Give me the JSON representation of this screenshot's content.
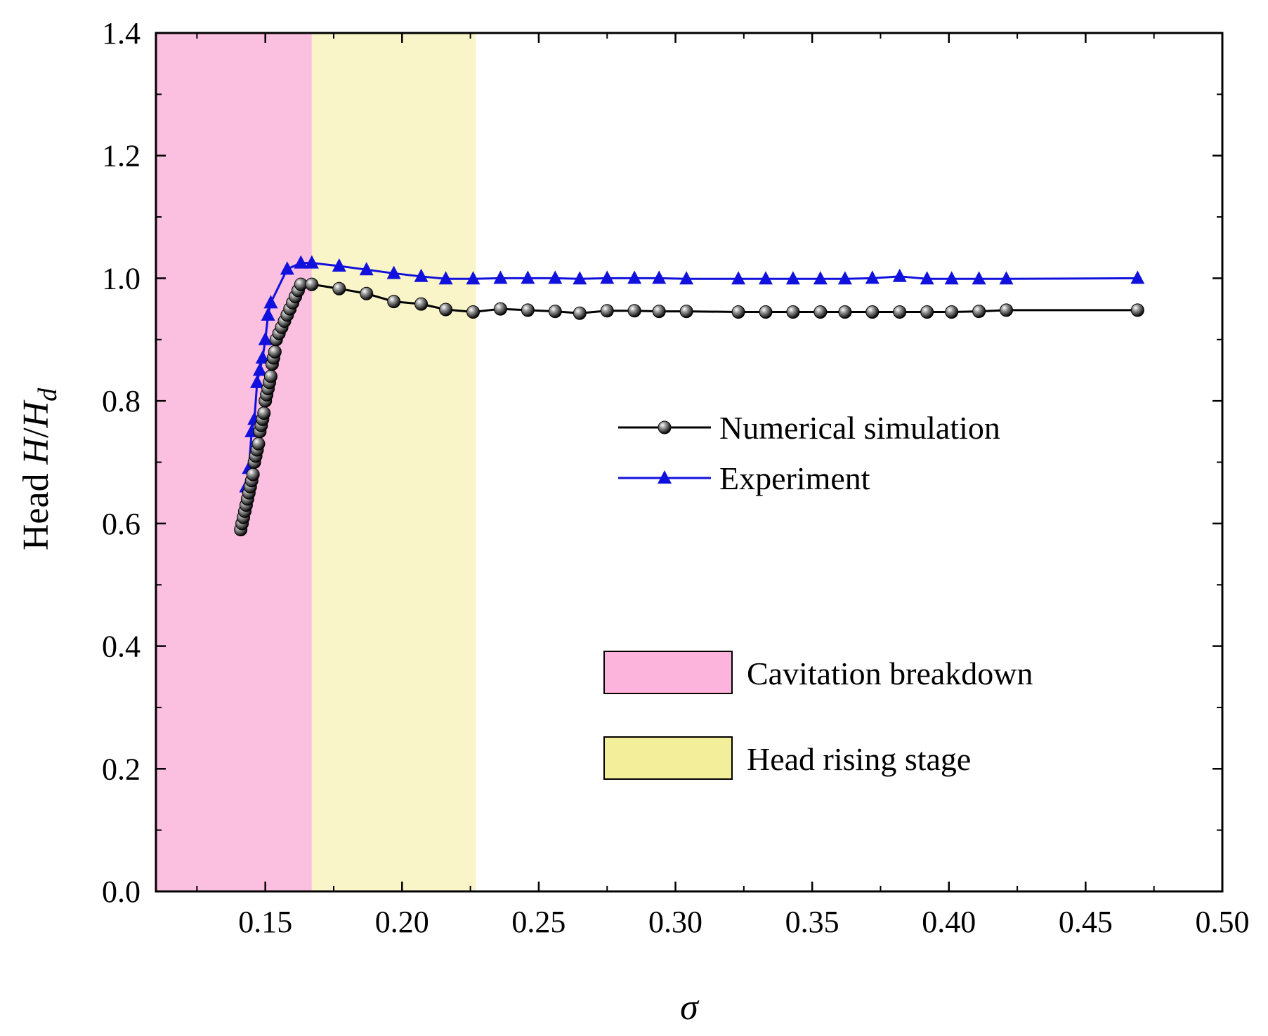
{
  "chart_data": {
    "type": "line",
    "title": "",
    "xlabel": "σ",
    "ylabel": {
      "prefix": "Head ",
      "var": "H",
      "slash": "/",
      "sub_var": "H",
      "sub": "d"
    },
    "xlim": [
      0.11,
      0.5
    ],
    "ylim": [
      0.0,
      1.4
    ],
    "xticks": [
      0.15,
      0.2,
      0.25,
      0.3,
      0.35,
      0.4,
      0.45,
      0.5
    ],
    "xtick_labels": [
      "0.15",
      "0.20",
      "0.25",
      "0.30",
      "0.35",
      "0.40",
      "0.45",
      "0.50"
    ],
    "yticks": [
      0.0,
      0.2,
      0.4,
      0.6,
      0.8,
      1.0,
      1.2,
      1.4
    ],
    "ytick_labels": [
      "0.0",
      "0.2",
      "0.4",
      "0.6",
      "0.8",
      "1.0",
      "1.2",
      "1.4"
    ],
    "grid": false,
    "regions": [
      {
        "name": "Cavitation breakdown",
        "x0": 0.11,
        "x1": 0.167,
        "color": "#fbbfe0",
        "legend_color": "#fcb3dc"
      },
      {
        "name": "Head rising stage",
        "x0": 0.167,
        "x1": 0.227,
        "color": "#faf5c8",
        "legend_color": "#f3ee9a"
      }
    ],
    "series": [
      {
        "name": "Numerical simulation",
        "color": "#000000",
        "marker": "sphere",
        "x": [
          0.141,
          0.1415,
          0.142,
          0.1425,
          0.143,
          0.1435,
          0.144,
          0.1445,
          0.145,
          0.1455,
          0.146,
          0.1465,
          0.147,
          0.1475,
          0.148,
          0.1485,
          0.149,
          0.1495,
          0.15,
          0.1505,
          0.151,
          0.1515,
          0.152,
          0.1525,
          0.153,
          0.1535,
          0.154,
          0.155,
          0.156,
          0.157,
          0.158,
          0.159,
          0.16,
          0.161,
          0.162,
          0.163,
          0.167,
          0.177,
          0.187,
          0.197,
          0.207,
          0.216,
          0.226,
          0.236,
          0.246,
          0.256,
          0.265,
          0.275,
          0.285,
          0.294,
          0.304,
          0.323,
          0.333,
          0.343,
          0.353,
          0.362,
          0.372,
          0.382,
          0.392,
          0.401,
          0.411,
          0.421,
          0.469
        ],
        "values": [
          0.59,
          0.6,
          0.61,
          0.62,
          0.63,
          0.64,
          0.65,
          0.66,
          0.67,
          0.68,
          0.7,
          0.71,
          0.72,
          0.73,
          0.75,
          0.76,
          0.77,
          0.78,
          0.8,
          0.81,
          0.82,
          0.83,
          0.84,
          0.86,
          0.87,
          0.88,
          0.9,
          0.91,
          0.92,
          0.93,
          0.94,
          0.95,
          0.96,
          0.97,
          0.98,
          0.99,
          0.99,
          0.983,
          0.975,
          0.962,
          0.958,
          0.949,
          0.945,
          0.95,
          0.948,
          0.946,
          0.943,
          0.947,
          0.947,
          0.946,
          0.946,
          0.945,
          0.945,
          0.945,
          0.945,
          0.945,
          0.945,
          0.945,
          0.945,
          0.945,
          0.946,
          0.948,
          0.948
        ]
      },
      {
        "name": "Experiment",
        "color": "#1111dd",
        "marker": "triangle",
        "x": [
          0.143,
          0.144,
          0.145,
          0.146,
          0.147,
          0.148,
          0.149,
          0.15,
          0.151,
          0.152,
          0.158,
          0.163,
          0.167,
          0.177,
          0.187,
          0.197,
          0.207,
          0.216,
          0.226,
          0.236,
          0.246,
          0.256,
          0.265,
          0.275,
          0.285,
          0.294,
          0.304,
          0.323,
          0.333,
          0.343,
          0.353,
          0.362,
          0.372,
          0.382,
          0.392,
          0.401,
          0.411,
          0.421,
          0.469
        ],
        "values": [
          0.66,
          0.69,
          0.75,
          0.77,
          0.83,
          0.85,
          0.87,
          0.9,
          0.94,
          0.96,
          1.015,
          1.025,
          1.025,
          1.02,
          1.014,
          1.008,
          1.003,
          0.999,
          0.999,
          1.0,
          1.0,
          1.0,
          0.999,
          1.0,
          1.0,
          1.0,
          0.999,
          0.999,
          0.999,
          0.999,
          0.999,
          0.999,
          1.0,
          1.003,
          0.999,
          0.999,
          0.999,
          0.999,
          1.0
        ]
      }
    ]
  }
}
